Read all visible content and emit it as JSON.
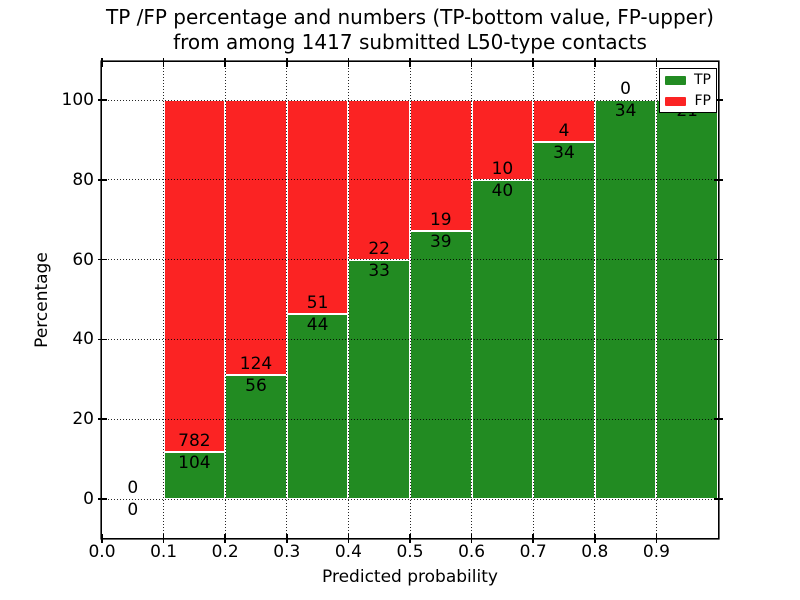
{
  "figure": {
    "title_line1": "TP /FP percentage and numbers (TP-bottom value, FP-upper)",
    "title_line2": "from among 1417 submitted L50-type contacts"
  },
  "chart_data": {
    "type": "bar",
    "stacked": true,
    "title": "TP /FP percentage and numbers (TP-bottom value, FP-upper) from among 1417 submitted L50-type contacts",
    "xlabel": "Predicted probability",
    "ylabel": "Percentage",
    "x_tick_labels": [
      "0.0",
      "0.1",
      "0.2",
      "0.3",
      "0.4",
      "0.5",
      "0.6",
      "0.7",
      "0.8",
      "0.9"
    ],
    "y_tick_values": [
      0,
      20,
      40,
      60,
      80,
      100
    ],
    "xlim": [
      0.0,
      1.0
    ],
    "ylim": [
      -9.8,
      109.5
    ],
    "grid": {
      "visible": true,
      "style": "dotted"
    },
    "units": "bars show percentage of bin total; numbers are raw counts (TP bottom, FP upper)",
    "total_submitted_contacts": 1417,
    "colors": {
      "tp": "#228b22",
      "fp": "#fb2323"
    },
    "legend": {
      "position": "upper right",
      "entries": [
        {
          "label": "TP",
          "color": "#228b22"
        },
        {
          "label": "FP",
          "color": "#fb2323"
        }
      ]
    },
    "bins": [
      {
        "x_range": [
          0.0,
          0.1
        ],
        "tp": 0,
        "fp": 0,
        "fp_label_shown": true
      },
      {
        "x_range": [
          0.1,
          0.2
        ],
        "tp": 104,
        "fp": 782,
        "fp_label_shown": true
      },
      {
        "x_range": [
          0.2,
          0.3
        ],
        "tp": 56,
        "fp": 124,
        "fp_label_shown": true
      },
      {
        "x_range": [
          0.3,
          0.4
        ],
        "tp": 44,
        "fp": 51,
        "fp_label_shown": true
      },
      {
        "x_range": [
          0.4,
          0.5
        ],
        "tp": 33,
        "fp": 22,
        "fp_label_shown": true
      },
      {
        "x_range": [
          0.5,
          0.6
        ],
        "tp": 39,
        "fp": 19,
        "fp_label_shown": true
      },
      {
        "x_range": [
          0.6,
          0.7
        ],
        "tp": 40,
        "fp": 10,
        "fp_label_shown": true
      },
      {
        "x_range": [
          0.7,
          0.8
        ],
        "tp": 34,
        "fp": 4,
        "fp_label_shown": true
      },
      {
        "x_range": [
          0.8,
          0.9
        ],
        "tp": 34,
        "fp": 0,
        "fp_label_shown": true
      },
      {
        "x_range": [
          0.9,
          1.0
        ],
        "tp": 21,
        "fp": 0,
        "fp_label_shown": false
      }
    ]
  }
}
